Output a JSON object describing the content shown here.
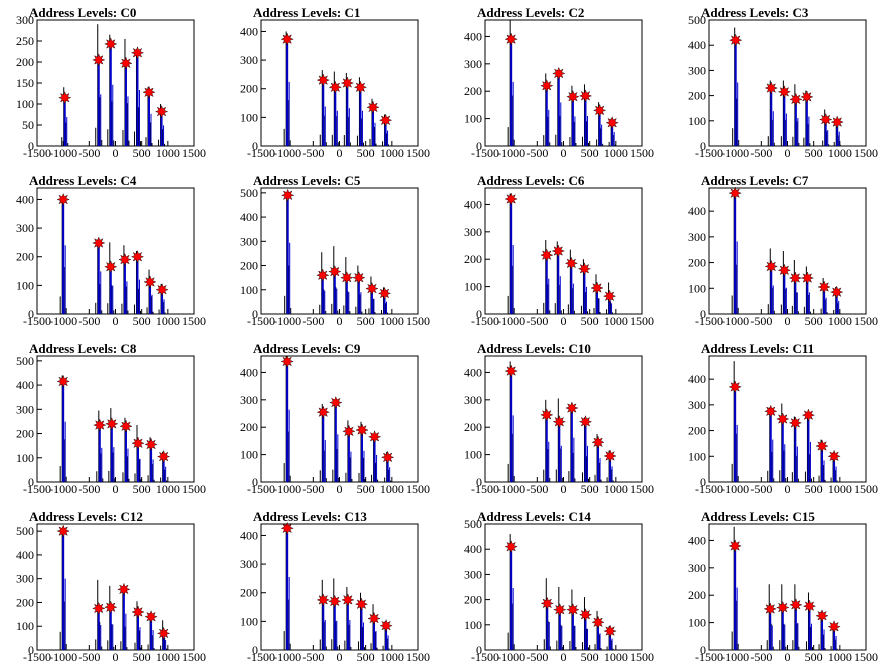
{
  "chart_data": [
    {
      "type": "bar",
      "title": "Address Levels: C0",
      "ylim": [
        0,
        300
      ],
      "yticks": [
        0,
        50,
        100,
        150,
        200,
        250,
        300
      ],
      "xlim": [
        -1500,
        1500
      ],
      "xticks": [
        -1500,
        -1000,
        -500,
        0,
        500,
        1000,
        1500
      ],
      "peaks_x": [
        -970,
        -320,
        -90,
        200,
        420,
        640,
        880
      ],
      "peaks_y": [
        115,
        205,
        243,
        197,
        222,
        128,
        82
      ],
      "spike_max": [
        140,
        290,
        265,
        255,
        230,
        140,
        100
      ],
      "color_peak": "#ff0000",
      "color_blue": "#0000cc"
    },
    {
      "type": "bar",
      "title": "Address Levels: C1",
      "ylim": [
        0,
        440
      ],
      "yticks": [
        0,
        100,
        200,
        300,
        400
      ],
      "xlim": [
        -1500,
        1500
      ],
      "xticks": [
        -1500,
        -1000,
        -500,
        0,
        500,
        1000,
        1500
      ],
      "peaks_x": [
        -1000,
        -310,
        -80,
        150,
        400,
        640,
        880
      ],
      "peaks_y": [
        373,
        230,
        205,
        220,
        205,
        135,
        90
      ],
      "spike_max": [
        400,
        265,
        260,
        255,
        240,
        165,
        110
      ],
      "color_peak": "#ff0000",
      "color_blue": "#0000cc"
    },
    {
      "type": "bar",
      "title": "Address Levels: C2",
      "ylim": [
        0,
        460
      ],
      "yticks": [
        0,
        100,
        200,
        300,
        400
      ],
      "xlim": [
        -1500,
        1500
      ],
      "xticks": [
        -1500,
        -1000,
        -500,
        0,
        500,
        1000,
        1500
      ],
      "peaks_x": [
        -1000,
        -320,
        -90,
        180,
        420,
        690,
        930
      ],
      "peaks_y": [
        390,
        220,
        265,
        180,
        183,
        130,
        85
      ],
      "spike_max": [
        460,
        265,
        275,
        220,
        225,
        160,
        100
      ],
      "color_peak": "#ff0000",
      "color_blue": "#0000cc"
    },
    {
      "type": "bar",
      "title": "Address Levels: C3",
      "ylim": [
        0,
        500
      ],
      "yticks": [
        0,
        100,
        200,
        300,
        400,
        500
      ],
      "xlim": [
        -1500,
        1500
      ],
      "xticks": [
        -1500,
        -1000,
        -500,
        0,
        500,
        1000,
        1500
      ],
      "peaks_x": [
        -990,
        -310,
        -60,
        160,
        370,
        730,
        950
      ],
      "peaks_y": [
        420,
        230,
        215,
        185,
        195,
        105,
        95
      ],
      "spike_max": [
        470,
        260,
        260,
        245,
        220,
        145,
        105
      ],
      "color_peak": "#ff0000",
      "color_blue": "#0000cc"
    },
    {
      "type": "bar",
      "title": "Address Levels: C4",
      "ylim": [
        0,
        440
      ],
      "yticks": [
        0,
        100,
        200,
        300,
        400
      ],
      "xlim": [
        -1500,
        1500
      ],
      "xticks": [
        -1500,
        -1000,
        -500,
        0,
        500,
        1000,
        1500
      ],
      "peaks_x": [
        -1000,
        -320,
        -90,
        180,
        420,
        660,
        890
      ],
      "peaks_y": [
        400,
        248,
        165,
        190,
        200,
        112,
        85
      ],
      "spike_max": [
        410,
        260,
        250,
        240,
        220,
        155,
        105
      ],
      "color_peak": "#ff0000",
      "color_blue": "#0000cc"
    },
    {
      "type": "bar",
      "title": "Address Levels: C5",
      "ylim": [
        0,
        520
      ],
      "yticks": [
        0,
        100,
        200,
        300,
        400,
        500
      ],
      "xlim": [
        -1500,
        1500
      ],
      "xticks": [
        -1500,
        -1000,
        -500,
        0,
        500,
        1000,
        1500
      ],
      "peaks_x": [
        -990,
        -320,
        -90,
        140,
        370,
        620,
        860
      ],
      "peaks_y": [
        490,
        160,
        175,
        150,
        150,
        105,
        85
      ],
      "spike_max": [
        500,
        255,
        280,
        235,
        200,
        155,
        110
      ],
      "color_peak": "#ff0000",
      "color_blue": "#0000cc"
    },
    {
      "type": "bar",
      "title": "Address Levels: C6",
      "ylim": [
        0,
        460
      ],
      "yticks": [
        0,
        100,
        200,
        300,
        400
      ],
      "xlim": [
        -1500,
        1500
      ],
      "xticks": [
        -1500,
        -1000,
        -500,
        0,
        500,
        1000,
        1500
      ],
      "peaks_x": [
        -1000,
        -320,
        -100,
        150,
        400,
        640,
        880
      ],
      "peaks_y": [
        420,
        215,
        230,
        185,
        165,
        95,
        65
      ],
      "spike_max": [
        440,
        270,
        265,
        235,
        200,
        145,
        115
      ],
      "color_peak": "#ff0000",
      "color_blue": "#0000cc"
    },
    {
      "type": "bar",
      "title": "Address Levels: C7",
      "ylim": [
        0,
        490
      ],
      "yticks": [
        0,
        100,
        200,
        300,
        400
      ],
      "xlim": [
        -1500,
        1500
      ],
      "xticks": [
        -1500,
        -1000,
        -500,
        0,
        500,
        1000,
        1500
      ],
      "peaks_x": [
        -1000,
        -310,
        -60,
        150,
        380,
        700,
        940
      ],
      "peaks_y": [
        470,
        185,
        170,
        140,
        140,
        105,
        85
      ],
      "spike_max": [
        480,
        255,
        245,
        210,
        185,
        140,
        105
      ],
      "color_peak": "#ff0000",
      "color_blue": "#0000cc"
    },
    {
      "type": "bar",
      "title": "Address Levels: C8",
      "ylim": [
        0,
        520
      ],
      "yticks": [
        0,
        100,
        200,
        300,
        400,
        500
      ],
      "xlim": [
        -1500,
        1500
      ],
      "xticks": [
        -1500,
        -1000,
        -500,
        0,
        500,
        1000,
        1500
      ],
      "peaks_x": [
        -1000,
        -300,
        -70,
        200,
        430,
        680,
        920
      ],
      "peaks_y": [
        415,
        235,
        240,
        230,
        160,
        155,
        105
      ],
      "spike_max": [
        440,
        295,
        305,
        265,
        235,
        185,
        125
      ],
      "color_peak": "#ff0000",
      "color_blue": "#0000cc"
    },
    {
      "type": "bar",
      "title": "Address Levels: C9",
      "ylim": [
        0,
        460
      ],
      "yticks": [
        0,
        100,
        200,
        300,
        400
      ],
      "xlim": [
        -1500,
        1500
      ],
      "xticks": [
        -1500,
        -1000,
        -500,
        0,
        500,
        1000,
        1500
      ],
      "peaks_x": [
        -1000,
        -310,
        -70,
        180,
        430,
        670,
        920
      ],
      "peaks_y": [
        440,
        255,
        290,
        185,
        190,
        165,
        90
      ],
      "spike_max": [
        460,
        285,
        300,
        225,
        220,
        175,
        110
      ],
      "color_peak": "#ff0000",
      "color_blue": "#0000cc"
    },
    {
      "type": "bar",
      "title": "Address Levels: C10",
      "ylim": [
        0,
        460
      ],
      "yticks": [
        0,
        100,
        200,
        300,
        400
      ],
      "xlim": [
        -1500,
        1500
      ],
      "xticks": [
        -1500,
        -1000,
        -500,
        0,
        500,
        1000,
        1500
      ],
      "peaks_x": [
        -1000,
        -320,
        -80,
        160,
        420,
        660,
        890
      ],
      "peaks_y": [
        405,
        245,
        220,
        270,
        220,
        145,
        95
      ],
      "spike_max": [
        440,
        300,
        305,
        265,
        235,
        175,
        115
      ],
      "color_peak": "#ff0000",
      "color_blue": "#0000cc"
    },
    {
      "type": "bar",
      "title": "Address Levels: C11",
      "ylim": [
        0,
        490
      ],
      "yticks": [
        0,
        100,
        200,
        300,
        400
      ],
      "xlim": [
        -1500,
        1500
      ],
      "xticks": [
        -1500,
        -1000,
        -500,
        0,
        500,
        1000,
        1500
      ],
      "peaks_x": [
        -1000,
        -320,
        -90,
        150,
        400,
        660,
        890
      ],
      "peaks_y": [
        370,
        275,
        245,
        230,
        260,
        140,
        100
      ],
      "spike_max": [
        470,
        290,
        305,
        255,
        270,
        165,
        115
      ],
      "color_peak": "#ff0000",
      "color_blue": "#0000cc"
    },
    {
      "type": "bar",
      "title": "Address Levels: C12",
      "ylim": [
        0,
        530
      ],
      "yticks": [
        0,
        100,
        200,
        300,
        400,
        500
      ],
      "xlim": [
        -1500,
        1500
      ],
      "xticks": [
        -1500,
        -1000,
        -500,
        0,
        500,
        1000,
        1500
      ],
      "peaks_x": [
        -1000,
        -320,
        -90,
        160,
        430,
        680,
        920
      ],
      "peaks_y": [
        500,
        175,
        180,
        255,
        160,
        140,
        70
      ],
      "spike_max": [
        510,
        295,
        270,
        245,
        205,
        155,
        125
      ],
      "color_peak": "#ff0000",
      "color_blue": "#0000cc"
    },
    {
      "type": "bar",
      "title": "Address Levels: C13",
      "ylim": [
        0,
        440
      ],
      "yticks": [
        0,
        100,
        200,
        300,
        400
      ],
      "xlim": [
        -1500,
        1500
      ],
      "xticks": [
        -1500,
        -1000,
        -500,
        0,
        500,
        1000,
        1500
      ],
      "peaks_x": [
        -1000,
        -310,
        -90,
        160,
        420,
        660,
        890
      ],
      "peaks_y": [
        425,
        175,
        170,
        175,
        160,
        110,
        85
      ],
      "spike_max": [
        440,
        245,
        250,
        220,
        200,
        160,
        100
      ],
      "color_peak": "#ff0000",
      "color_blue": "#0000cc"
    },
    {
      "type": "bar",
      "title": "Address Levels: C14",
      "ylim": [
        0,
        500
      ],
      "yticks": [
        0,
        100,
        200,
        300,
        400,
        500
      ],
      "xlim": [
        -1500,
        1500
      ],
      "xticks": [
        -1500,
        -1000,
        -500,
        0,
        500,
        1000,
        1500
      ],
      "peaks_x": [
        -1000,
        -310,
        -70,
        180,
        420,
        660,
        890
      ],
      "peaks_y": [
        410,
        185,
        160,
        160,
        140,
        110,
        75
      ],
      "spike_max": [
        460,
        285,
        250,
        240,
        210,
        155,
        95
      ],
      "color_peak": "#ff0000",
      "color_blue": "#0000cc"
    },
    {
      "type": "bar",
      "title": "Address Levels: C15",
      "ylim": [
        0,
        460
      ],
      "yticks": [
        0,
        100,
        200,
        300,
        400
      ],
      "xlim": [
        -1500,
        1500
      ],
      "xticks": [
        -1500,
        -1000,
        -500,
        0,
        500,
        1000,
        1500
      ],
      "peaks_x": [
        -1000,
        -330,
        -90,
        160,
        420,
        660,
        890
      ],
      "peaks_y": [
        380,
        150,
        155,
        165,
        160,
        125,
        85
      ],
      "spike_max": [
        450,
        240,
        240,
        240,
        210,
        140,
        95
      ],
      "color_peak": "#ff0000",
      "color_blue": "#0000cc"
    }
  ]
}
